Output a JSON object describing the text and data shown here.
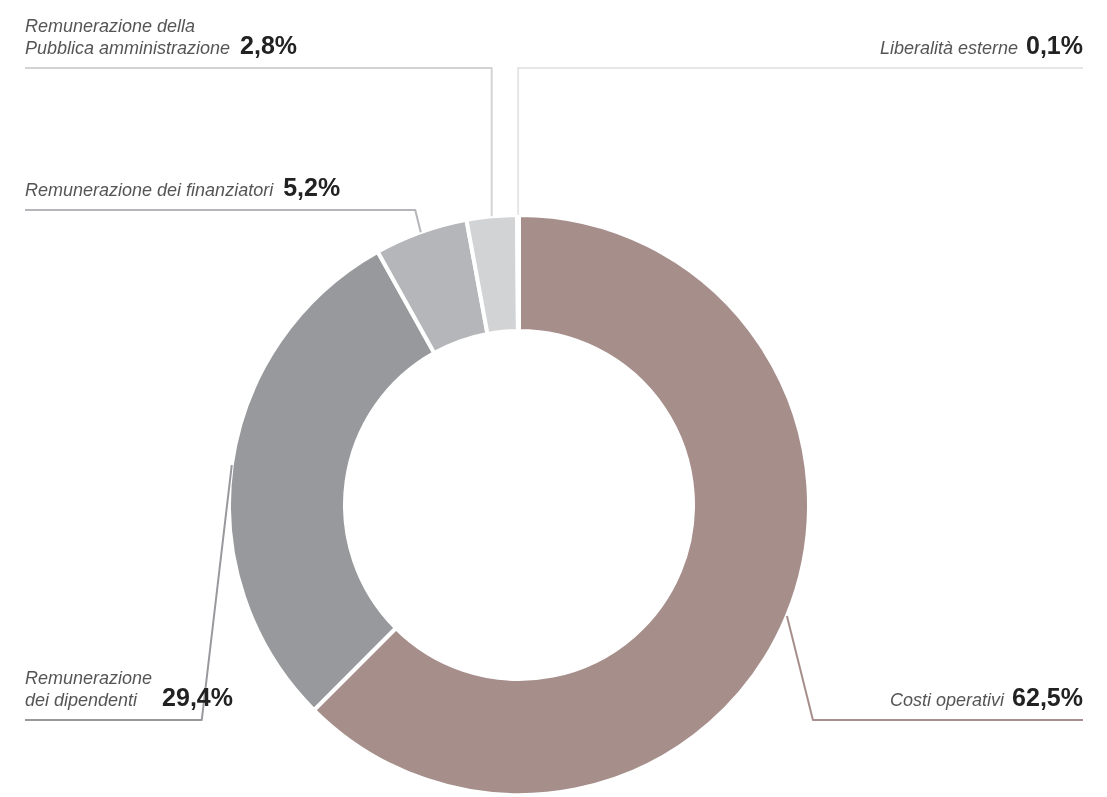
{
  "chart_data": {
    "type": "donut",
    "categories": [
      "Costi operativi",
      "Remunerazione dei dipendenti",
      "Remunerazione dei finanziatori",
      "Remunerazione della Pubblica amministrazione",
      "Liberalità esterne"
    ],
    "values": [
      62.5,
      29.4,
      5.2,
      2.8,
      0.1
    ],
    "value_labels": [
      "62,5%",
      "29,4%",
      "5,2%",
      "2,8%",
      "0,1%"
    ],
    "colors": [
      "#a68e8b",
      "#98999c",
      "#b5b6b9",
      "#d2d3d5",
      "#e6e6e7"
    ]
  }
}
